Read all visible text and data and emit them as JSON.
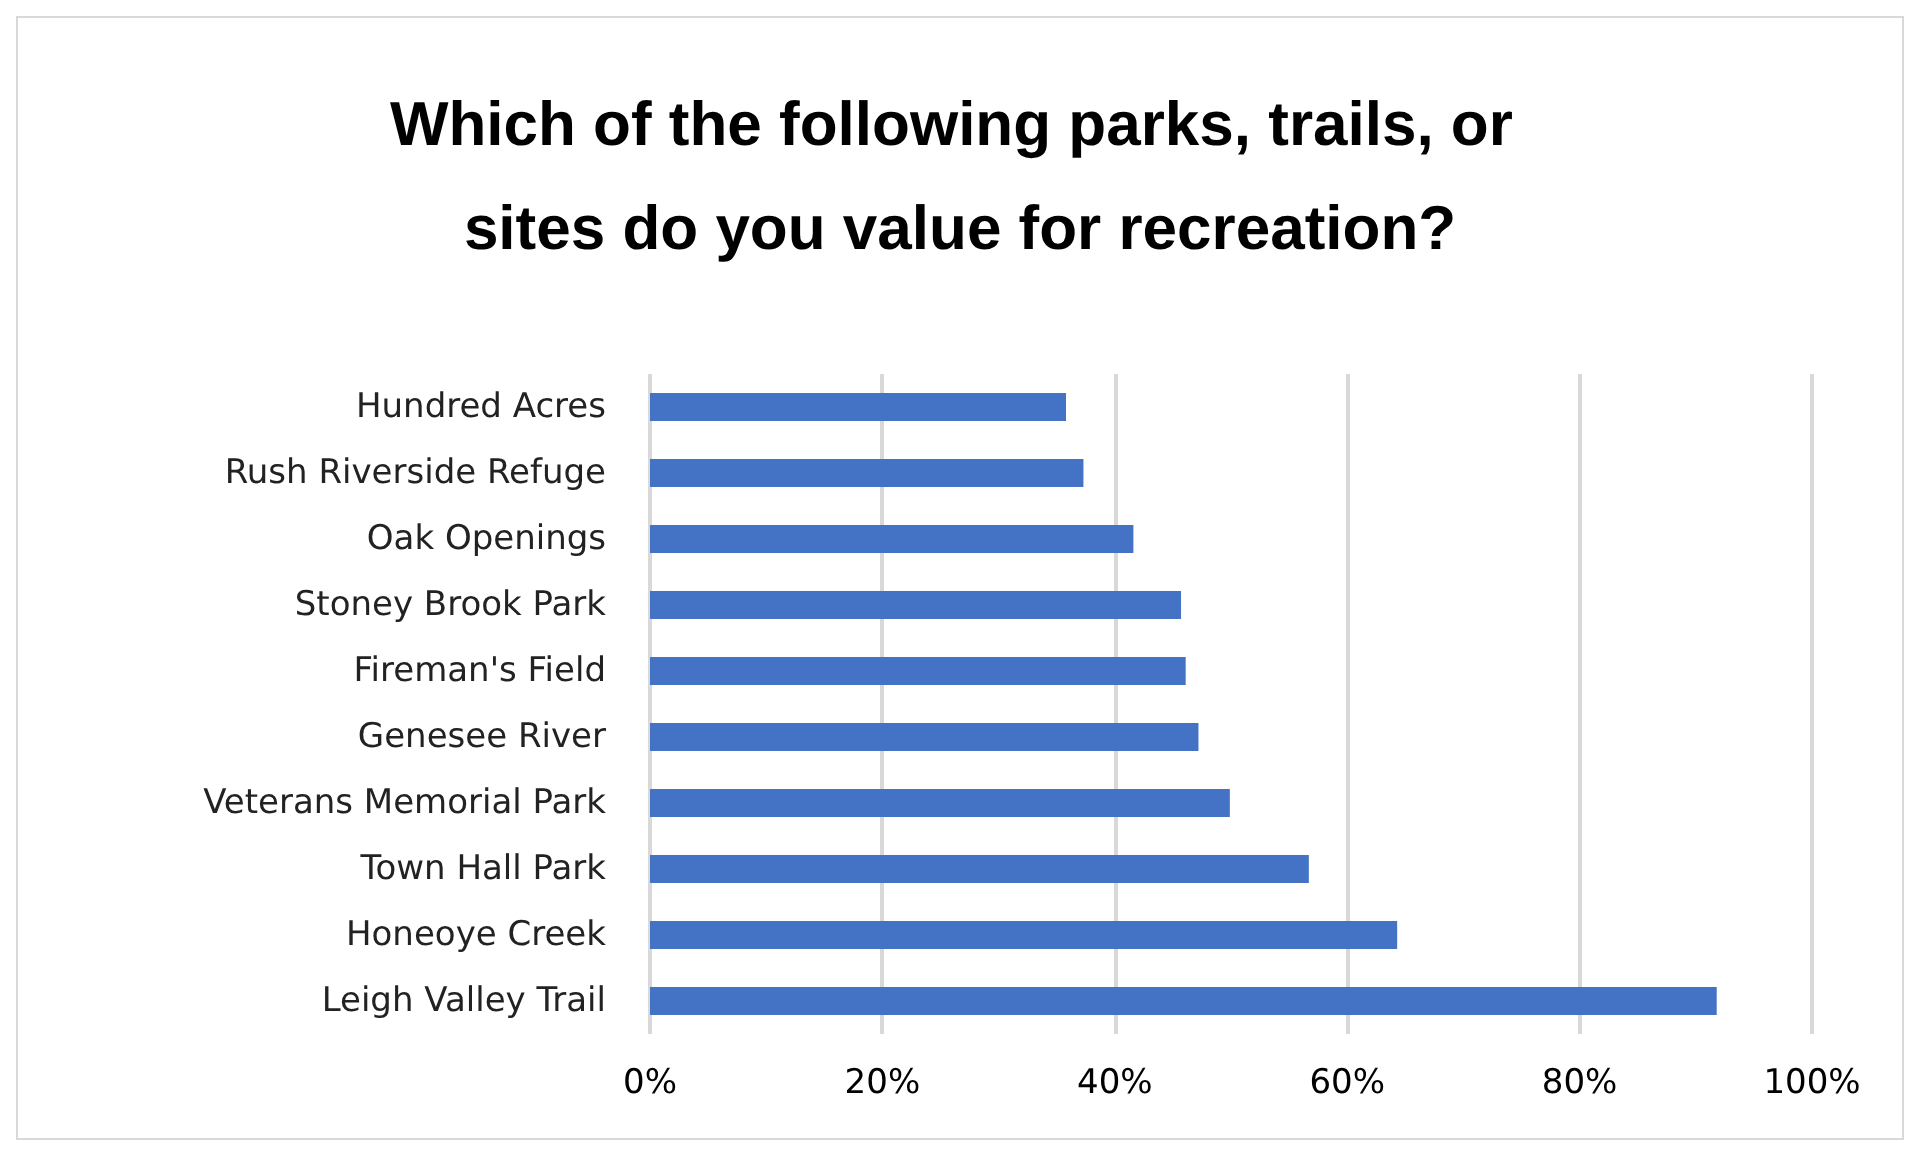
{
  "chart_data": {
    "type": "bar",
    "orientation": "horizontal",
    "title": "Which of the following parks, trails, or sites do you value for recreation?",
    "categories": [
      "Hundred Acres",
      "Rush Riverside Refuge",
      "Oak Openings",
      "Stoney Brook Park",
      "Fireman's Field",
      "Genesee River",
      "Veterans Memorial Park",
      "Town Hall Park",
      "Honeoye Creek",
      "Leigh Valley Trail"
    ],
    "values": [
      35.8,
      37.3,
      41.6,
      45.7,
      46.1,
      47.2,
      49.9,
      56.7,
      64.3,
      91.8
    ],
    "color": "#4472c4",
    "xlim": [
      0,
      100
    ],
    "xticks": [
      {
        "value": 0,
        "label": "0%"
      },
      {
        "value": 20,
        "label": "20%"
      },
      {
        "value": 40,
        "label": "40%"
      },
      {
        "value": 60,
        "label": "60%"
      },
      {
        "value": 80,
        "label": "80%"
      },
      {
        "value": 100,
        "label": "100%"
      }
    ],
    "grid": "x"
  }
}
